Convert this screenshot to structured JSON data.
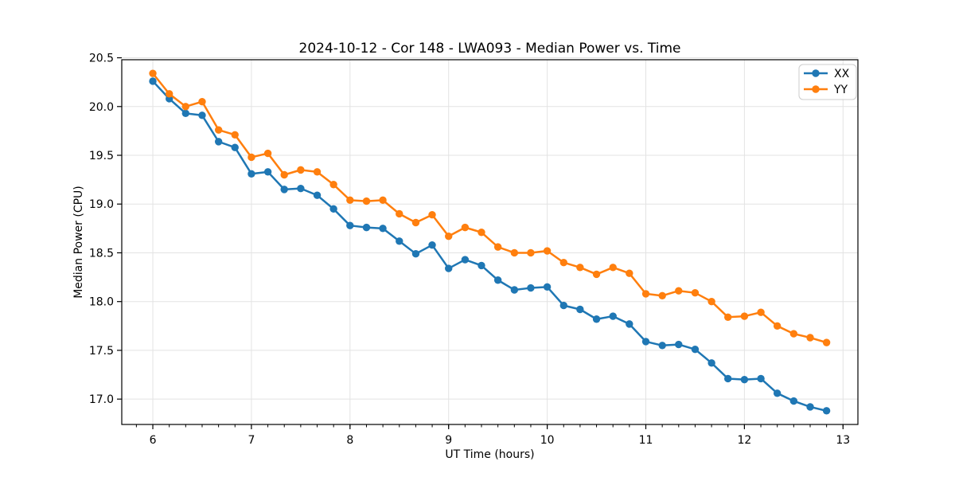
{
  "figure": {
    "background": "#ffffff"
  },
  "chart_data": {
    "type": "line",
    "title": "2024-10-12 - Cor 148 - LWA093 - Median Power vs. Time",
    "xlabel": "UT Time (hours)",
    "ylabel": "Median Power (CPU)",
    "xlim": [
      5.685,
      13.151
    ],
    "ylim": [
      16.74,
      20.48
    ],
    "x_ticks": [
      6,
      7,
      8,
      9,
      10,
      11,
      12,
      13
    ],
    "x_tick_labels": [
      "6",
      "7",
      "8",
      "9",
      "10",
      "11",
      "12",
      "13"
    ],
    "x_minor_tick_step": 0.166667,
    "y_ticks": [
      17.0,
      17.5,
      18.0,
      18.5,
      19.0,
      19.5,
      20.0,
      20.5
    ],
    "y_tick_labels": [
      "17.0",
      "17.5",
      "18.0",
      "18.5",
      "19.0",
      "19.5",
      "20.0",
      "20.5"
    ],
    "grid": true,
    "legend_position": "upper right",
    "x": [
      6.0,
      6.167,
      6.333,
      6.5,
      6.667,
      6.833,
      7.0,
      7.167,
      7.333,
      7.5,
      7.667,
      7.833,
      8.0,
      8.167,
      8.333,
      8.5,
      8.667,
      8.833,
      9.0,
      9.167,
      9.333,
      9.5,
      9.667,
      9.833,
      10.0,
      10.167,
      10.333,
      10.5,
      10.667,
      10.833,
      11.0,
      11.167,
      11.333,
      11.5,
      11.667,
      11.833,
      12.0,
      12.167,
      12.333,
      12.5,
      12.667,
      12.833
    ],
    "series": [
      {
        "name": "XX",
        "color": "#1f77b4",
        "values": [
          20.26,
          20.08,
          19.93,
          19.91,
          19.64,
          19.58,
          19.31,
          19.33,
          19.15,
          19.16,
          19.09,
          18.95,
          18.78,
          18.76,
          18.75,
          18.62,
          18.49,
          18.58,
          18.34,
          18.43,
          18.37,
          18.22,
          18.12,
          18.14,
          18.15,
          17.96,
          17.92,
          17.82,
          17.85,
          17.77,
          17.59,
          17.55,
          17.56,
          17.51,
          17.37,
          17.21,
          17.2,
          17.21,
          17.06,
          16.98,
          16.92,
          16.88
        ]
      },
      {
        "name": "YY",
        "color": "#ff7f0e",
        "values": [
          20.34,
          20.13,
          20.0,
          20.05,
          19.76,
          19.71,
          19.48,
          19.52,
          19.3,
          19.35,
          19.33,
          19.2,
          19.04,
          19.03,
          19.04,
          18.9,
          18.81,
          18.89,
          18.67,
          18.76,
          18.71,
          18.56,
          18.5,
          18.5,
          18.52,
          18.4,
          18.35,
          18.28,
          18.35,
          18.29,
          18.08,
          18.06,
          18.11,
          18.09,
          18.0,
          17.84,
          17.85,
          17.89,
          17.75,
          17.67,
          17.63,
          17.58
        ]
      }
    ],
    "style": {
      "grid_color": "#e3e3e3",
      "spine_color": "#000000",
      "tick_color": "#000000",
      "legend_border_color": "#cccccc",
      "legend_background": "#ffffff",
      "marker_radius": 4.7,
      "line_width": 2.5
    }
  }
}
